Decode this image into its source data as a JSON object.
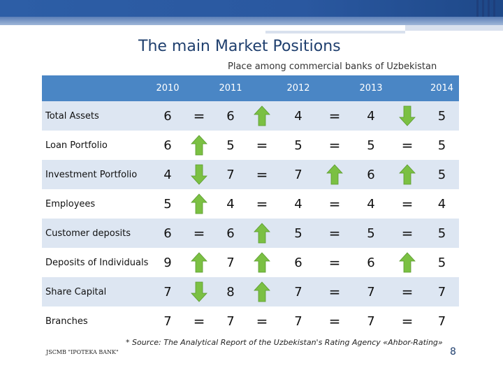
{
  "slide": {
    "title": "The main Market Positions",
    "subtitle": "Place among commercial banks of Uzbekistan",
    "footnote": "* Source: The Analytical Report of the Uzbekistan's Rating Agency «Ahbor-Rating»",
    "logo_text": "JSCMB \"IPOTEKA BANK\"",
    "page_number": "8"
  },
  "colors": {
    "header_bg": "#4a86c5",
    "odd_row": "#dde6f2",
    "arrow_green": "#7bc043",
    "title": "#1f3f6e"
  },
  "table": {
    "columns": [
      "",
      "2010",
      "",
      "2011",
      "",
      "2012",
      "",
      "2013",
      "",
      "2014"
    ],
    "rows": [
      {
        "label": "Total Assets",
        "cells": [
          "6",
          "=",
          "6",
          "up-arrow",
          "4",
          "=",
          "4",
          "down-arrow",
          "5"
        ]
      },
      {
        "label": "Loan Portfolio",
        "cells": [
          "6",
          "up-arrow",
          "5",
          "=",
          "5",
          "=",
          "5",
          "=",
          "5"
        ]
      },
      {
        "label": "Investment Portfolio",
        "cells": [
          "4",
          "down-arrow",
          "7",
          "=",
          "7",
          "up-arrow",
          "6",
          "up-arrow",
          "5"
        ]
      },
      {
        "label": "Employees",
        "cells": [
          "5",
          "up-arrow",
          "4",
          "=",
          "4",
          "=",
          "4",
          "=",
          "4"
        ]
      },
      {
        "label": "Customer deposits",
        "cells": [
          "6",
          "=",
          "6",
          "up-arrow",
          "5",
          "=",
          "5",
          "=",
          "5"
        ]
      },
      {
        "label": "Deposits of Individuals",
        "cells": [
          "9",
          "up-arrow",
          "7",
          "up-arrow",
          "6",
          "=",
          "6",
          "up-arrow",
          "5"
        ]
      },
      {
        "label": "Share Capital",
        "cells": [
          "7",
          "down-arrow",
          "8",
          "up-arrow",
          "7",
          "=",
          "7",
          "=",
          "7"
        ]
      },
      {
        "label": "Branches",
        "cells": [
          "7",
          "=",
          "7",
          "=",
          "7",
          "=",
          "7",
          "=",
          "7"
        ]
      }
    ]
  }
}
